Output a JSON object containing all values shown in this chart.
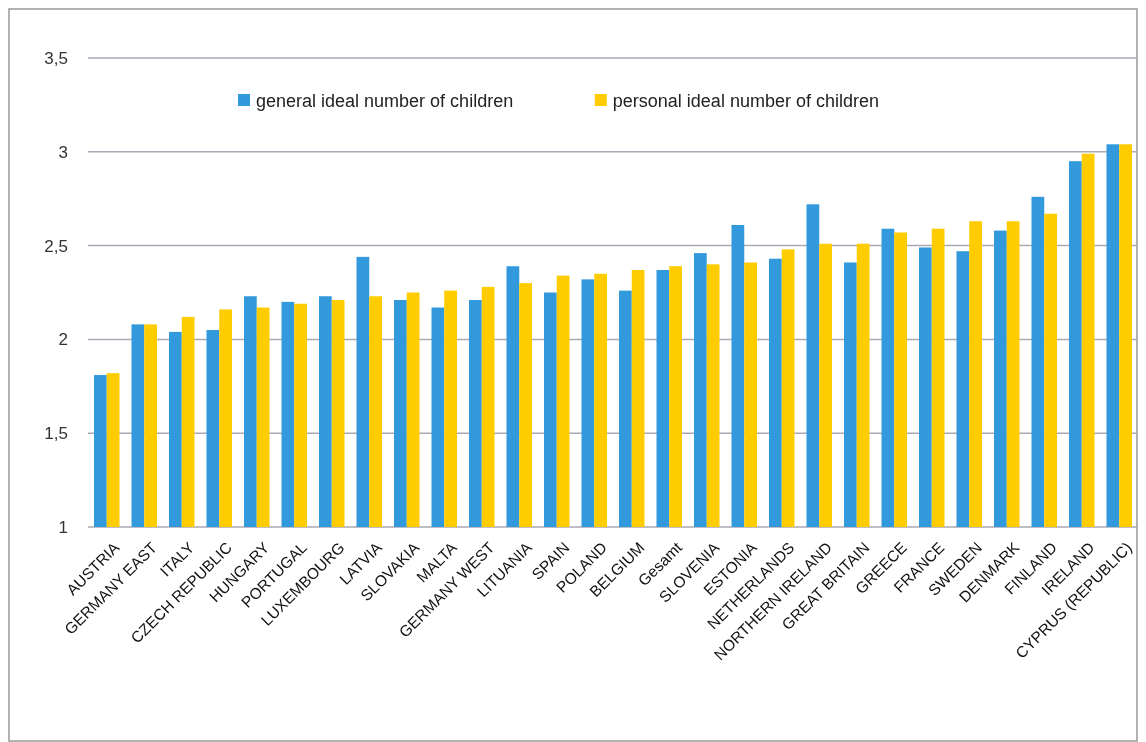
{
  "chart_data": {
    "type": "bar",
    "categories": [
      "AUSTRIA",
      "GERMANY EAST",
      "ITALY",
      "CZECH REPUBLIC",
      "HUNGARY",
      "PORTUGAL",
      "LUXEMBOURG",
      "LATVIA",
      "SLOVAKIA",
      "MALTA",
      "GERMANY WEST",
      "LITUANIA",
      "SPAIN",
      "POLAND",
      "BELGIUM",
      "Gesamt",
      "SLOVENIA",
      "ESTONIA",
      "NETHERLANDS",
      "NORTHERN IRELAND",
      "GREAT BRITAIN",
      "GREECE",
      "FRANCE",
      "SWEDEN",
      "DENMARK",
      "FINLAND",
      "IRELAND",
      "CYPRUS (REPUBLIC)"
    ],
    "series": [
      {
        "name": "general ideal number of children",
        "color": "#3399dd",
        "values": [
          1.81,
          2.08,
          2.04,
          2.05,
          2.23,
          2.2,
          2.23,
          2.44,
          2.21,
          2.17,
          2.21,
          2.39,
          2.25,
          2.32,
          2.26,
          2.37,
          2.46,
          2.61,
          2.43,
          2.72,
          2.41,
          2.59,
          2.49,
          2.47,
          2.58,
          2.76,
          2.95,
          3.04
        ]
      },
      {
        "name": "personal ideal number of children",
        "color": "#ffcc00",
        "values": [
          1.82,
          2.08,
          2.12,
          2.16,
          2.17,
          2.19,
          2.21,
          2.23,
          2.25,
          2.26,
          2.28,
          2.3,
          2.34,
          2.35,
          2.37,
          2.39,
          2.4,
          2.41,
          2.48,
          2.51,
          2.51,
          2.57,
          2.59,
          2.63,
          2.63,
          2.67,
          2.99,
          3.04
        ]
      }
    ],
    "ylim": [
      1,
      3.5
    ],
    "yticks": [
      1,
      {
        "value": 1.5,
        "label": "1,5"
      },
      2,
      {
        "value": 2.5,
        "label": "2,5"
      },
      3,
      {
        "value": 3.5,
        "label": "3,5"
      }
    ],
    "grid": "y",
    "legend": "top"
  }
}
